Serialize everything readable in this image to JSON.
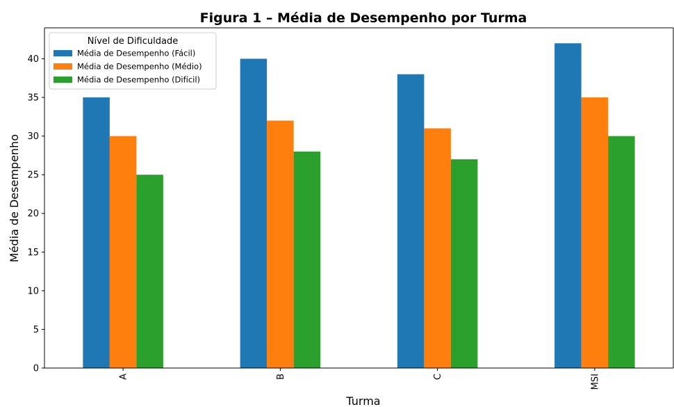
{
  "chart_data": {
    "type": "bar",
    "title": "Figura 1 – Média de Desempenho por Turma",
    "xlabel": "Turma",
    "ylabel": "Média de Desempenho",
    "categories": [
      "A",
      "B",
      "C",
      "MSI"
    ],
    "ylim": [
      0,
      44
    ],
    "yticks": [
      0,
      5,
      10,
      15,
      20,
      25,
      30,
      35,
      40
    ],
    "grid": false,
    "legend": {
      "title": "Nível de Dificuldade",
      "placement": "top-left"
    },
    "series": [
      {
        "name": "Média de Desempenho (Fácil)",
        "color": "#1f77b4",
        "values": [
          35,
          40,
          38,
          42
        ]
      },
      {
        "name": "Média de Desempenho (Médio)",
        "color": "#ff7f0e",
        "values": [
          30,
          32,
          31,
          35
        ]
      },
      {
        "name": "Média de Desempenho (Difícil)",
        "color": "#2ca02c",
        "values": [
          25,
          28,
          27,
          30
        ]
      }
    ]
  }
}
